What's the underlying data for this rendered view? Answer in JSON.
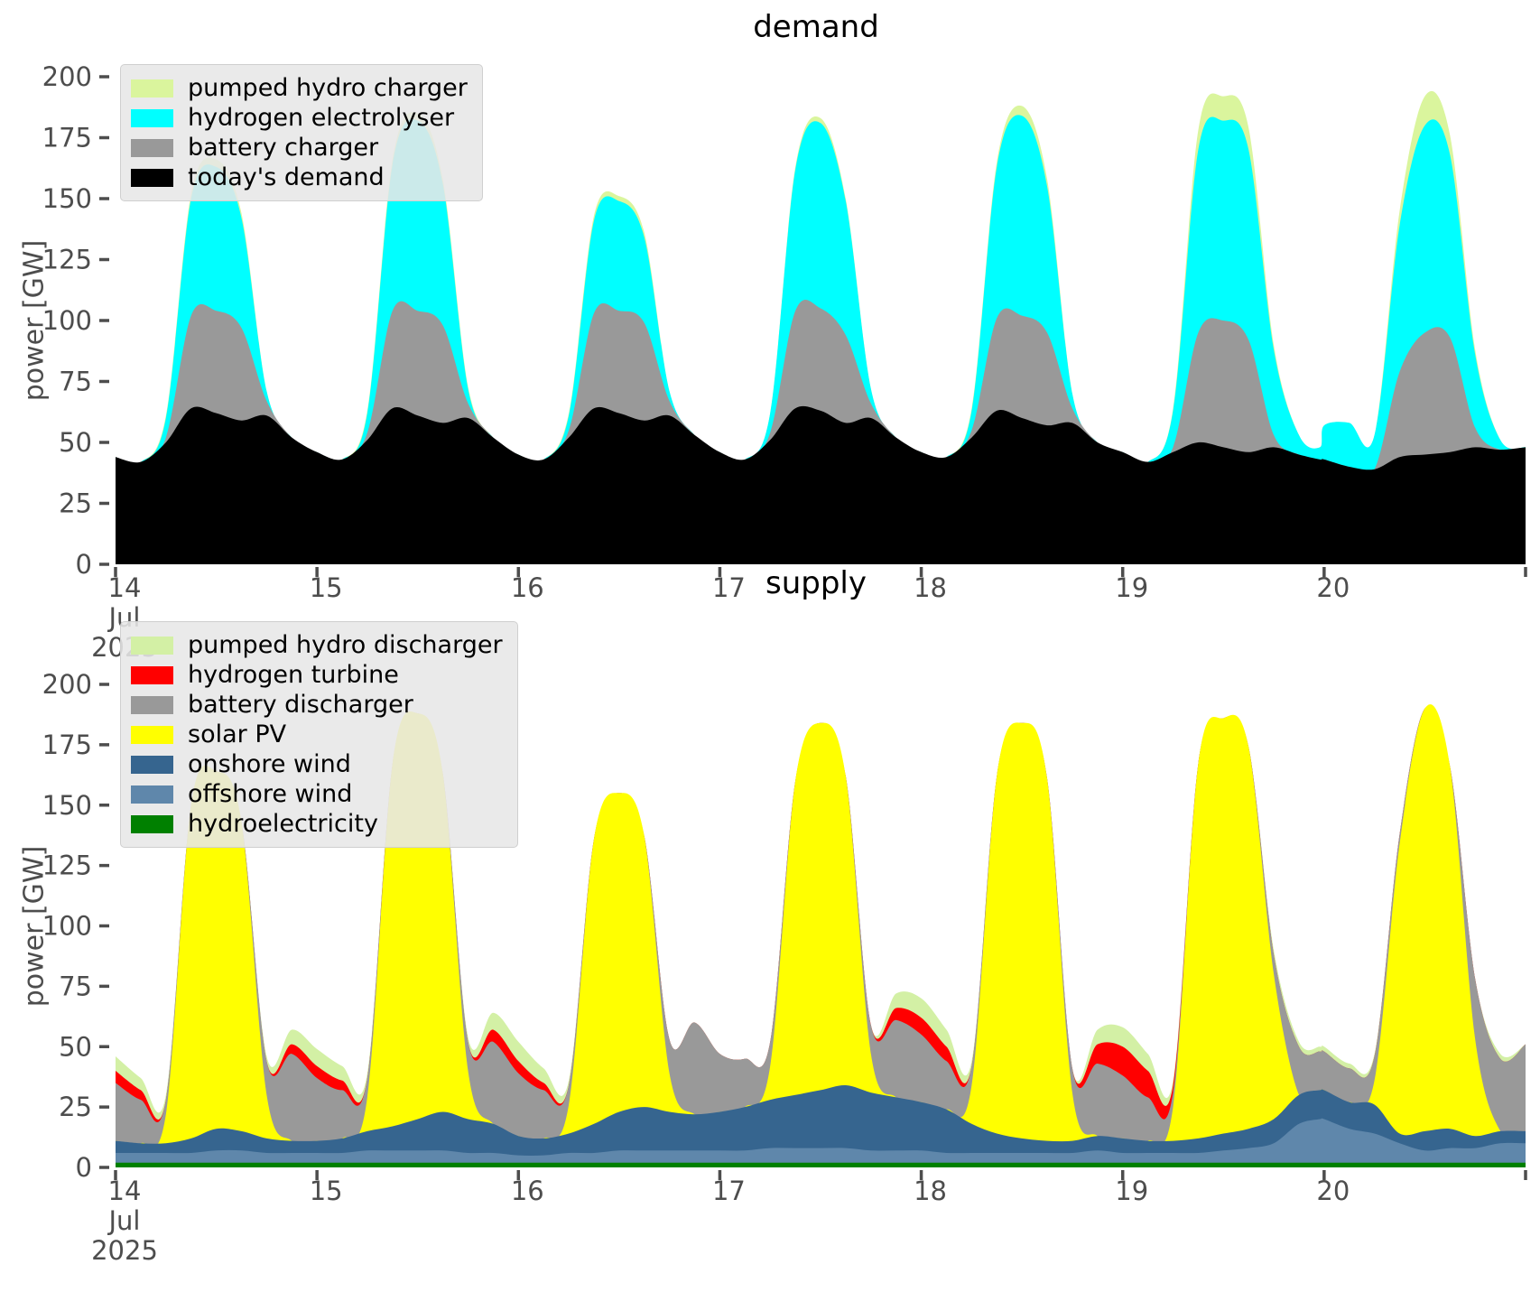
{
  "figure": {
    "background": "#ffffff",
    "tick_color": "#4d4d4d"
  },
  "chart_data": [
    {
      "type": "area",
      "stacked": true,
      "title": "demand",
      "ylabel": "power [GW]",
      "ylim": [
        0,
        200
      ],
      "yticks": [
        0,
        25,
        50,
        75,
        100,
        125,
        150,
        175,
        200
      ],
      "grid": false,
      "legend_position": "upper left",
      "x_unit": "hours since 2025-07-14 00:00",
      "x": [
        0,
        3,
        6,
        9,
        12,
        15,
        18,
        21,
        24,
        27,
        30,
        33,
        36,
        39,
        42,
        45,
        48,
        51,
        54,
        57,
        60,
        63,
        66,
        69,
        72,
        75,
        78,
        81,
        84,
        87,
        90,
        93,
        96,
        99,
        102,
        105,
        108,
        111,
        114,
        117,
        120,
        123,
        126,
        129,
        132,
        135,
        138,
        141,
        143.5,
        144,
        147,
        150,
        153,
        156,
        159,
        162,
        165,
        168
      ],
      "xticks": {
        "hours": [
          0,
          24,
          48,
          72,
          96,
          120,
          144,
          168
        ],
        "labels": [
          "14",
          "15",
          "16",
          "17",
          "18",
          "19",
          "20",
          ""
        ],
        "first_tick_sublabels": [
          "Jul",
          "2025"
        ]
      },
      "series": [
        {
          "name": "todays-demand",
          "label": "today's demand",
          "color": "#000000",
          "values": [
            44,
            42,
            50,
            64,
            62,
            59,
            61,
            52,
            46,
            43,
            51,
            64,
            61,
            58,
            60,
            52,
            45,
            43,
            52,
            64,
            62,
            59,
            61,
            53,
            46,
            43,
            51,
            64,
            63,
            58,
            60,
            52,
            46,
            44,
            52,
            63,
            60,
            57,
            58,
            50,
            46,
            42,
            46,
            50,
            48,
            46,
            48,
            45,
            43,
            43,
            40,
            39,
            44,
            45,
            46,
            48,
            47,
            48
          ]
        },
        {
          "name": "battery-charger",
          "label": "battery charger",
          "color": "#999999",
          "values": [
            0,
            0,
            2,
            38,
            42,
            38,
            6,
            0,
            0,
            0,
            3,
            40,
            43,
            40,
            6,
            0,
            0,
            0,
            3,
            39,
            42,
            40,
            6,
            0,
            0,
            0,
            3,
            40,
            42,
            36,
            6,
            0,
            0,
            0,
            3,
            38,
            42,
            38,
            6,
            0,
            0,
            0,
            2,
            45,
            52,
            46,
            5,
            0,
            0,
            0,
            0,
            0,
            35,
            50,
            47,
            8,
            0,
            0
          ]
        },
        {
          "name": "hydrogen-electrolyser",
          "label": "hydrogen electrolyser",
          "color": "#00ffff",
          "values": [
            0,
            0,
            8,
            48,
            59,
            45,
            4,
            0,
            0,
            0,
            8,
            60,
            78,
            58,
            6,
            0,
            0,
            0,
            6,
            38,
            45,
            35,
            4,
            0,
            0,
            0,
            8,
            58,
            76,
            55,
            6,
            0,
            0,
            0,
            8,
            62,
            82,
            60,
            6,
            0,
            0,
            0,
            15,
            75,
            82,
            78,
            35,
            8,
            5,
            14,
            18,
            14,
            60,
            85,
            75,
            30,
            4,
            0
          ]
        },
        {
          "name": "pumped-hydro-charger",
          "label": "pumped hydro charger",
          "color": "#daf59d",
          "values": [
            0,
            0,
            1,
            2,
            3,
            2,
            0,
            0,
            0,
            0,
            1,
            2,
            3,
            2,
            1,
            0,
            0,
            0,
            1,
            2,
            2,
            2,
            0,
            0,
            0,
            0,
            0,
            1,
            2,
            1,
            0,
            0,
            0,
            0,
            1,
            2,
            4,
            3,
            0,
            0,
            0,
            0,
            1,
            8,
            10,
            9,
            2,
            0,
            0,
            0,
            0,
            0,
            6,
            12,
            8,
            2,
            0,
            0
          ]
        }
      ]
    },
    {
      "type": "area",
      "stacked": true,
      "title": "supply",
      "ylabel": "power [GW]",
      "ylim": [
        0,
        200
      ],
      "yticks": [
        0,
        25,
        50,
        75,
        100,
        125,
        150,
        175,
        200
      ],
      "grid": false,
      "legend_position": "upper left",
      "x_unit": "hours since 2025-07-14 00:00",
      "x": [
        0,
        3,
        6,
        9,
        12,
        15,
        18,
        21,
        24,
        27,
        30,
        33,
        36,
        39,
        42,
        45,
        48,
        51,
        54,
        57,
        60,
        63,
        66,
        69,
        72,
        75,
        78,
        81,
        84,
        87,
        90,
        93,
        96,
        99,
        102,
        105,
        108,
        111,
        114,
        117,
        120,
        123,
        126,
        129,
        132,
        135,
        138,
        141,
        143.5,
        144,
        147,
        150,
        153,
        156,
        159,
        162,
        165,
        168
      ],
      "xticks": {
        "hours": [
          0,
          24,
          48,
          72,
          96,
          120,
          144,
          168
        ],
        "labels": [
          "14",
          "15",
          "16",
          "17",
          "18",
          "19",
          "20",
          ""
        ],
        "first_tick_sublabels": [
          "Jul",
          "2025"
        ]
      },
      "series": [
        {
          "name": "hydroelectricity",
          "label": "hydroelectricity",
          "color": "#008000",
          "values": [
            2,
            2,
            2,
            2,
            2,
            2,
            2,
            2,
            2,
            2,
            2,
            2,
            2,
            2,
            2,
            2,
            2,
            2,
            2,
            2,
            2,
            2,
            2,
            2,
            2,
            2,
            2,
            2,
            2,
            2,
            2,
            2,
            2,
            2,
            2,
            2,
            2,
            2,
            2,
            2,
            2,
            2,
            2,
            2,
            2,
            2,
            2,
            2,
            2,
            2,
            2,
            2,
            2,
            2,
            2,
            2,
            2,
            2
          ]
        },
        {
          "name": "offshore-wind",
          "label": "offshore wind",
          "color": "#5f87ab",
          "values": [
            4,
            4,
            4,
            4,
            5,
            5,
            4,
            4,
            4,
            4,
            5,
            5,
            5,
            5,
            4,
            4,
            3,
            3,
            4,
            4,
            5,
            5,
            5,
            5,
            5,
            5,
            6,
            6,
            6,
            6,
            5,
            5,
            5,
            4,
            4,
            4,
            4,
            4,
            4,
            5,
            4,
            4,
            4,
            4,
            5,
            6,
            8,
            16,
            18,
            18,
            14,
            12,
            8,
            5,
            6,
            6,
            8,
            8
          ]
        },
        {
          "name": "onshore-wind",
          "label": "onshore wind",
          "color": "#36658f",
          "values": [
            5,
            4,
            4,
            6,
            9,
            8,
            6,
            5,
            5,
            6,
            8,
            10,
            13,
            16,
            14,
            12,
            8,
            7,
            8,
            12,
            16,
            18,
            16,
            15,
            16,
            18,
            20,
            22,
            24,
            26,
            24,
            22,
            20,
            18,
            12,
            8,
            6,
            5,
            5,
            6,
            6,
            5,
            5,
            6,
            7,
            8,
            10,
            12,
            12,
            12,
            11,
            12,
            4,
            8,
            8,
            5,
            5,
            5
          ]
        },
        {
          "name": "solar-pv",
          "label": "solar PV",
          "color": "#ffff00",
          "values": [
            0,
            0,
            12,
            138,
            148,
            128,
            18,
            0,
            0,
            0,
            14,
            150,
            168,
            140,
            20,
            0,
            0,
            0,
            12,
            118,
            132,
            112,
            16,
            0,
            0,
            0,
            14,
            130,
            152,
            128,
            16,
            0,
            0,
            0,
            16,
            148,
            172,
            150,
            20,
            0,
            0,
            0,
            14,
            155,
            172,
            158,
            60,
            0,
            0,
            0,
            0,
            10,
            120,
            175,
            150,
            40,
            0,
            0
          ]
        },
        {
          "name": "battery-discharger",
          "label": "battery discharger",
          "color": "#999999",
          "values": [
            24,
            18,
            6,
            0,
            0,
            0,
            14,
            36,
            26,
            20,
            8,
            0,
            0,
            0,
            12,
            34,
            26,
            20,
            8,
            0,
            0,
            0,
            14,
            38,
            24,
            20,
            10,
            0,
            0,
            0,
            12,
            32,
            28,
            20,
            8,
            0,
            0,
            0,
            10,
            30,
            26,
            18,
            6,
            0,
            0,
            0,
            8,
            20,
            16,
            16,
            14,
            10,
            4,
            0,
            0,
            25,
            30,
            36
          ]
        },
        {
          "name": "hydrogen-turbine",
          "label": "hydrogen turbine",
          "color": "#ff0000",
          "values": [
            5,
            4,
            0,
            0,
            0,
            0,
            0,
            4,
            5,
            4,
            0,
            0,
            0,
            0,
            0,
            5,
            5,
            3,
            0,
            0,
            0,
            0,
            0,
            0,
            0,
            0,
            0,
            0,
            0,
            0,
            0,
            5,
            7,
            6,
            0,
            0,
            0,
            0,
            0,
            8,
            12,
            11,
            3,
            0,
            0,
            0,
            0,
            0,
            0,
            0,
            0,
            0,
            0,
            0,
            0,
            0,
            0,
            0
          ]
        },
        {
          "name": "pumped-hydro-discharger",
          "label": "pumped hydro discharger",
          "color": "#d3f0a5",
          "values": [
            6,
            5,
            2,
            0,
            0,
            0,
            2,
            6,
            7,
            6,
            2,
            0,
            0,
            0,
            2,
            7,
            8,
            6,
            2,
            0,
            0,
            0,
            0,
            0,
            0,
            0,
            0,
            0,
            0,
            0,
            0,
            6,
            8,
            7,
            2,
            0,
            0,
            0,
            0,
            6,
            8,
            7,
            2,
            0,
            0,
            0,
            2,
            2,
            2,
            2,
            2,
            1,
            0,
            0,
            0,
            0,
            2,
            0
          ]
        }
      ]
    }
  ]
}
